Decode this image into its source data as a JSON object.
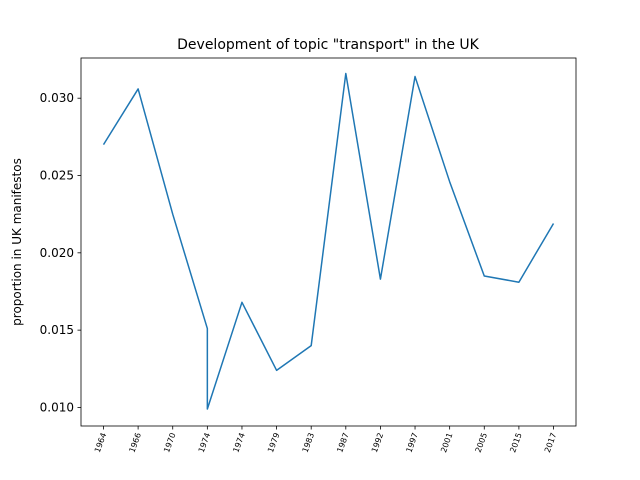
{
  "chart_data": {
    "type": "line",
    "title": "Development of topic \"transport\" in the UK",
    "ylabel": "proportion in UK manifestos",
    "x": [
      0,
      1,
      2,
      3,
      3,
      4,
      5,
      6,
      7,
      8,
      9,
      10,
      11,
      12,
      13
    ],
    "series": [
      {
        "name": "transport",
        "color": "#1f77b4",
        "values": [
          0.027,
          0.0306,
          0.0225,
          0.0151,
          0.0099,
          0.0168,
          0.0124,
          0.014,
          0.0316,
          0.0183,
          0.0314,
          0.0246,
          0.0185,
          0.0181,
          0.0219
        ]
      }
    ],
    "xlim": [
      -0.65,
      13.65
    ],
    "xticks": [
      {
        "value": 0,
        "label": "1964"
      },
      {
        "value": 1,
        "label": "1966"
      },
      {
        "value": 2,
        "label": "1970"
      },
      {
        "value": 3,
        "label": "1974"
      },
      {
        "value": 4,
        "label": "1974"
      },
      {
        "value": 5,
        "label": "1979"
      },
      {
        "value": 6,
        "label": "1983"
      },
      {
        "value": 7,
        "label": "1987"
      },
      {
        "value": 8,
        "label": "1992"
      },
      {
        "value": 9,
        "label": "1997"
      },
      {
        "value": 10,
        "label": "2001"
      },
      {
        "value": 11,
        "label": "2005"
      },
      {
        "value": 12,
        "label": "2015"
      },
      {
        "value": 13,
        "label": "2017"
      }
    ],
    "ylim": [
      0.0088,
      0.0326
    ],
    "yticks": [
      {
        "value": 0.01,
        "label": "0.010"
      },
      {
        "value": 0.015,
        "label": "0.015"
      },
      {
        "value": 0.02,
        "label": "0.020"
      },
      {
        "value": 0.025,
        "label": "0.025"
      },
      {
        "value": 0.03,
        "label": "0.030"
      }
    ],
    "grid": false
  }
}
